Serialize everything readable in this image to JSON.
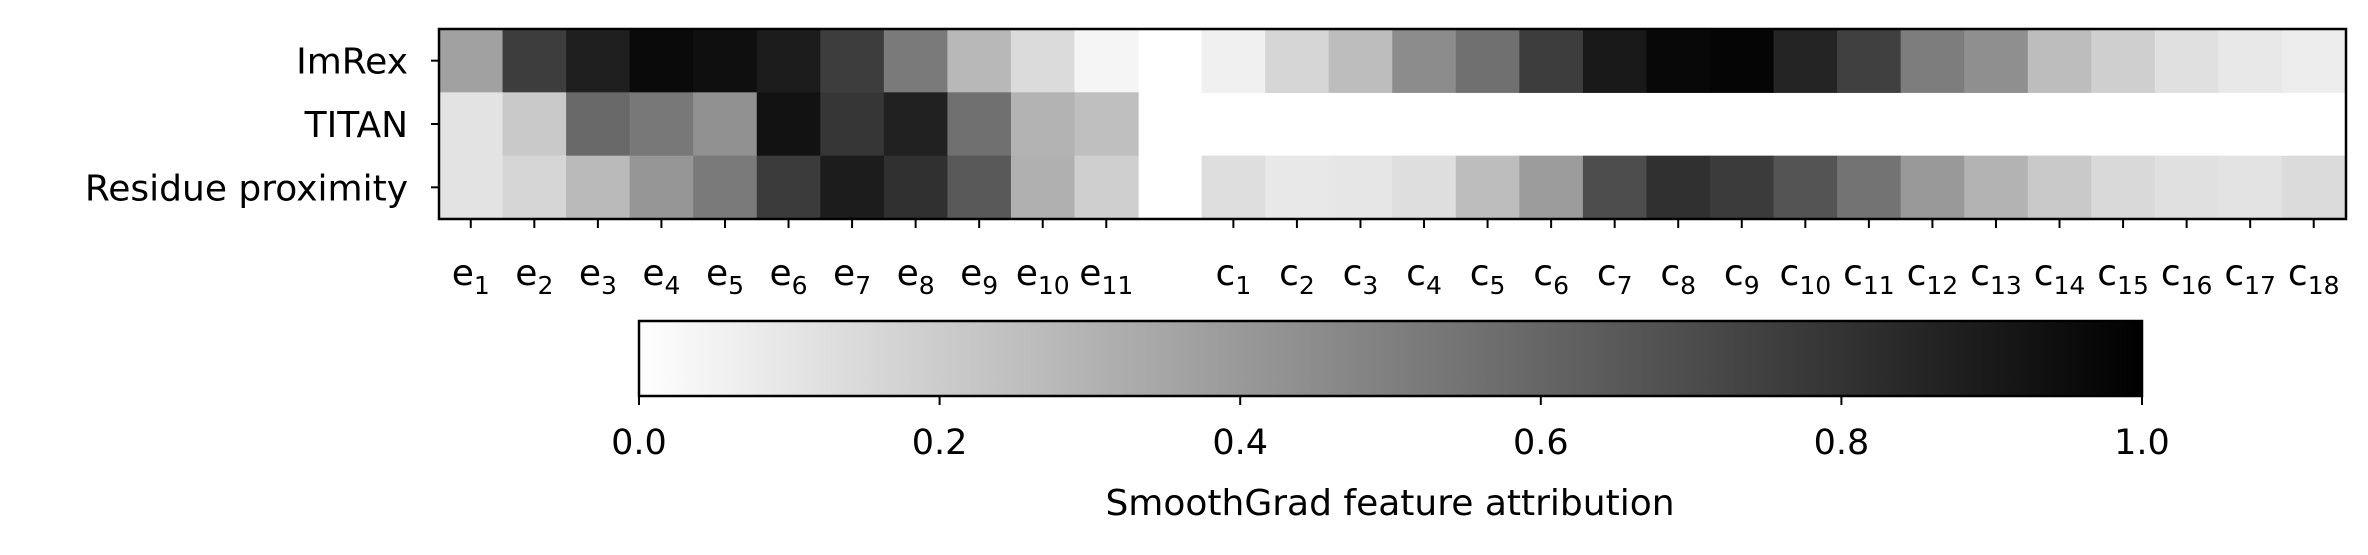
{
  "chart_data": {
    "type": "heatmap",
    "rows": [
      "ImRex",
      "TITAN",
      "Residue proximity"
    ],
    "epitope_columns": [
      {
        "base": "e",
        "sub": "1"
      },
      {
        "base": "e",
        "sub": "2"
      },
      {
        "base": "e",
        "sub": "3"
      },
      {
        "base": "e",
        "sub": "4"
      },
      {
        "base": "e",
        "sub": "5"
      },
      {
        "base": "e",
        "sub": "6"
      },
      {
        "base": "e",
        "sub": "7"
      },
      {
        "base": "e",
        "sub": "8"
      },
      {
        "base": "e",
        "sub": "9"
      },
      {
        "base": "e",
        "sub": "10"
      },
      {
        "base": "e",
        "sub": "11"
      }
    ],
    "cdr3_columns": [
      {
        "base": "c",
        "sub": "1"
      },
      {
        "base": "c",
        "sub": "2"
      },
      {
        "base": "c",
        "sub": "3"
      },
      {
        "base": "c",
        "sub": "4"
      },
      {
        "base": "c",
        "sub": "5"
      },
      {
        "base": "c",
        "sub": "6"
      },
      {
        "base": "c",
        "sub": "7"
      },
      {
        "base": "c",
        "sub": "8"
      },
      {
        "base": "c",
        "sub": "9"
      },
      {
        "base": "c",
        "sub": "10"
      },
      {
        "base": "c",
        "sub": "11"
      },
      {
        "base": "c",
        "sub": "12"
      },
      {
        "base": "c",
        "sub": "13"
      },
      {
        "base": "c",
        "sub": "14"
      },
      {
        "base": "c",
        "sub": "15"
      },
      {
        "base": "c",
        "sub": "16"
      },
      {
        "base": "c",
        "sub": "17"
      },
      {
        "base": "c",
        "sub": "18"
      }
    ],
    "values": {
      "ImRex": {
        "epitope": [
          0.37,
          0.76,
          0.88,
          0.96,
          0.94,
          0.89,
          0.76,
          0.52,
          0.28,
          0.14,
          0.04
        ],
        "cdr3": [
          0.06,
          0.16,
          0.26,
          0.45,
          0.56,
          0.76,
          0.9,
          0.97,
          0.98,
          0.86,
          0.75,
          0.51,
          0.44,
          0.26,
          0.19,
          0.12,
          0.09,
          0.07
        ]
      },
      "TITAN": {
        "epitope": [
          0.11,
          0.21,
          0.59,
          0.53,
          0.43,
          0.93,
          0.79,
          0.87,
          0.56,
          0.3,
          0.25
        ],
        "cdr3": [
          null,
          null,
          null,
          null,
          null,
          null,
          null,
          null,
          null,
          null,
          null,
          null,
          null,
          null,
          null,
          null,
          null,
          null
        ]
      },
      "Residue proximity": {
        "epitope": [
          0.11,
          0.16,
          0.27,
          0.41,
          0.52,
          0.77,
          0.89,
          0.81,
          0.65,
          0.31,
          0.19
        ],
        "cdr3": [
          0.13,
          0.09,
          0.1,
          0.13,
          0.26,
          0.39,
          0.7,
          0.81,
          0.77,
          0.67,
          0.55,
          0.4,
          0.3,
          0.21,
          0.15,
          0.12,
          0.11,
          0.14
        ]
      }
    },
    "colorbar": {
      "label": "SmoothGrad feature attribution",
      "ticks": [
        "0.0",
        "0.2",
        "0.4",
        "0.6",
        "0.8",
        "1.0"
      ],
      "range": [
        0,
        1
      ],
      "colormap": [
        "#ffffff",
        "#000000"
      ]
    }
  }
}
